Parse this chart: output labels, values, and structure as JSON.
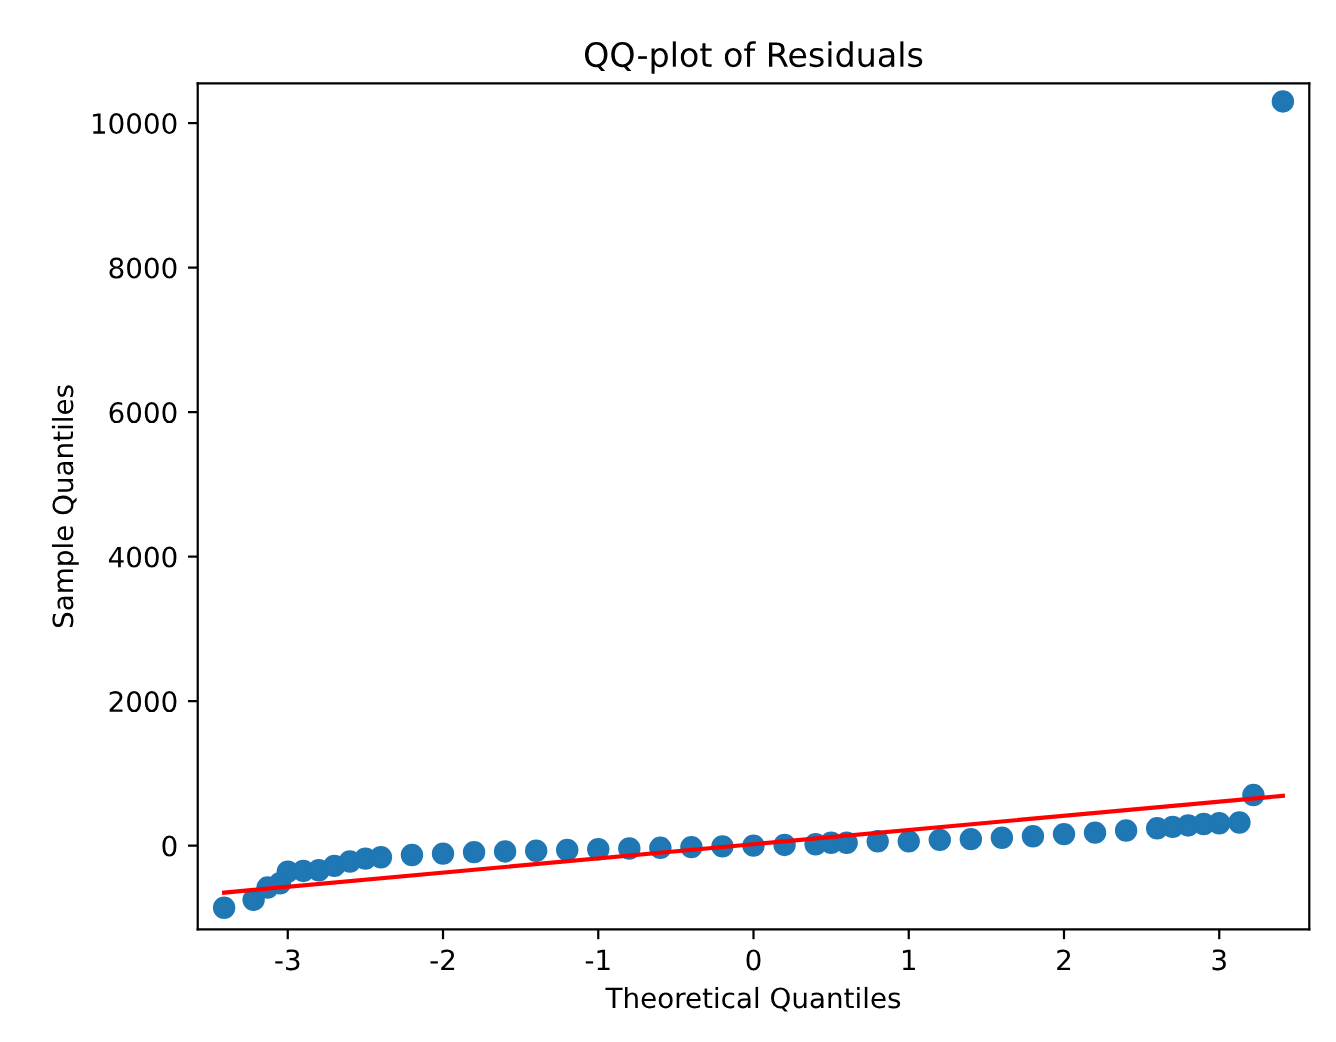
{
  "chart_data": {
    "type": "scatter",
    "title": "QQ-plot of Residuals",
    "xlabel": "Theoretical Quantiles",
    "ylabel": "Sample Quantiles",
    "xlim": [
      -3.58,
      3.58
    ],
    "ylim": [
      -1160,
      10550
    ],
    "xticks": [
      -3,
      -2,
      -1,
      0,
      1,
      2,
      3
    ],
    "yticks": [
      0,
      2000,
      4000,
      6000,
      8000,
      10000
    ],
    "grid": false,
    "series": [
      {
        "marker": "circle",
        "color": "#1f77b4",
        "x": [
          -3.41,
          -3.22,
          -3.13,
          -3.05,
          -3.0,
          -2.9,
          -2.8,
          -2.7,
          -2.6,
          -2.5,
          -2.4,
          -2.2,
          -2.0,
          -1.8,
          -1.6,
          -1.4,
          -1.2,
          -1.0,
          -0.8,
          -0.6,
          -0.4,
          -0.2,
          0.0,
          0.2,
          0.4,
          0.5,
          0.6,
          0.8,
          1.0,
          1.2,
          1.4,
          1.6,
          1.8,
          2.0,
          2.2,
          2.4,
          2.6,
          2.7,
          2.8,
          2.9,
          3.0,
          3.13,
          3.22,
          3.41
        ],
        "values": [
          -860,
          -750,
          -580,
          -520,
          -360,
          -350,
          -340,
          -280,
          -220,
          -180,
          -160,
          -130,
          -110,
          -90,
          -80,
          -70,
          -60,
          -50,
          -40,
          -30,
          -20,
          -10,
          0,
          10,
          20,
          40,
          40,
          60,
          60,
          80,
          90,
          110,
          130,
          160,
          180,
          210,
          240,
          260,
          280,
          300,
          310,
          320,
          700,
          10300
        ]
      },
      {
        "type": "line",
        "marker": "none",
        "color": "#ff0000",
        "x": [
          -3.41,
          3.41
        ],
        "values": [
          -650,
          690
        ]
      }
    ]
  }
}
